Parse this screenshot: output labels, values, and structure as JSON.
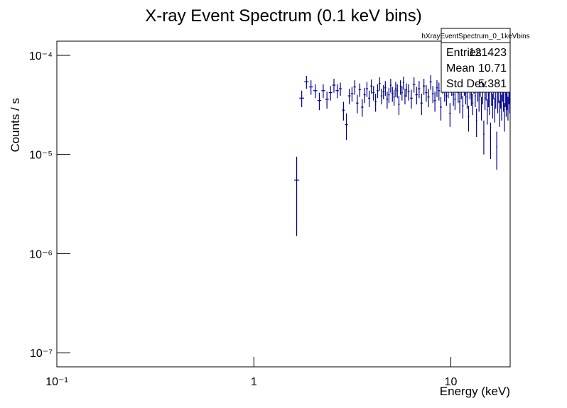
{
  "chart_data": {
    "type": "errorbar",
    "title": "X-ray Event Spectrum (0.1 keV bins)",
    "x_label": "Energy (keV)",
    "y_label": "Counts / s",
    "xlog": true,
    "ylog": true,
    "xlim": [
      0.1,
      20
    ],
    "ylim": [
      7.2e-08,
      0.000139
    ],
    "xticks": [
      {
        "value": 0.1,
        "label": "10⁻¹"
      },
      1,
      10
    ],
    "yticks": [
      {
        "value": 1e-07,
        "label": "10⁻⁷"
      },
      {
        "value": 1e-06,
        "label": "10⁻⁶"
      },
      {
        "value": 1e-05,
        "label": "10⁻⁵"
      },
      {
        "value": 0.0001,
        "label": "10⁻⁴"
      }
    ],
    "stats": {
      "title": "hXrayEventSpectrum_0_1keVbins",
      "rows": [
        [
          "Entries",
          "121423"
        ],
        [
          "Mean",
          "10.71"
        ],
        [
          "Std Dev",
          "5.381"
        ]
      ]
    },
    "series": [
      {
        "color": "#00008b",
        "x": [
          1.65,
          1.75,
          1.85,
          1.95,
          2.05,
          2.15,
          2.25,
          2.35,
          2.45,
          2.55,
          2.65,
          2.75,
          2.85,
          2.95,
          3.05,
          3.15,
          3.25,
          3.35,
          3.45,
          3.55,
          3.65,
          3.75,
          3.85,
          3.95,
          4.05,
          4.15,
          4.25,
          4.35,
          4.45,
          4.55,
          4.65,
          4.75,
          4.85,
          4.95,
          5.05,
          5.15,
          5.25,
          5.35,
          5.45,
          5.55,
          5.65,
          5.75,
          5.85,
          5.95,
          6.1,
          6.3,
          6.5,
          6.7,
          6.9,
          7.1,
          7.3,
          7.5,
          7.7,
          7.9,
          8.1,
          8.3,
          8.5,
          8.7,
          8.9,
          9.1,
          9.3,
          9.5,
          9.7,
          9.9,
          10.1,
          10.3,
          10.5,
          10.7,
          10.9,
          11.1,
          11.3,
          11.5,
          11.7,
          11.9,
          12.1,
          12.3,
          12.5,
          12.7,
          12.9,
          13.1,
          13.3,
          13.5,
          13.7,
          13.9,
          14.1,
          14.3,
          14.5,
          14.7,
          14.9,
          15.1,
          15.3,
          15.5,
          15.7,
          15.9,
          16.1,
          16.3,
          16.5,
          16.7,
          16.9,
          17.1,
          17.3,
          17.5,
          17.7,
          17.9,
          18.1,
          18.3,
          18.5,
          18.7,
          18.9,
          19.1,
          19.3,
          19.5,
          19.7,
          19.9
        ],
        "values": [
          5.5e-06,
          3.7e-05,
          5.4e-05,
          4.8e-05,
          4.4e-05,
          3.5e-05,
          4.4e-05,
          3.6e-05,
          4.2e-05,
          5e-05,
          4.4e-05,
          4.6e-05,
          2.8e-05,
          2e-05,
          3.9e-05,
          4.1e-05,
          4.8e-05,
          3.3e-05,
          4.5e-05,
          3e-05,
          4e-05,
          4.6e-05,
          3.7e-05,
          4.9e-05,
          4.2e-05,
          3.4e-05,
          4.4e-05,
          5.2e-05,
          3.9e-05,
          4.3e-05,
          4.7e-05,
          3.6e-05,
          4e-05,
          5e-05,
          4.1e-05,
          3.8e-05,
          4.6e-05,
          4.4e-05,
          3.2e-05,
          4.8e-05,
          4.2e-05,
          5.3e-05,
          3.9e-05,
          4.5e-05,
          4.3e-05,
          3.7e-05,
          5.1e-05,
          4e-05,
          4.6e-05,
          3.3e-05,
          4.9e-05,
          4.2e-05,
          3.8e-05,
          5.4e-05,
          4.1e-05,
          3.5e-05,
          4.7e-05,
          4.4e-05,
          3e-05,
          5e-05,
          4.3e-05,
          3.9e-05,
          4.6e-05,
          2.6e-05,
          4.8e-05,
          4e-05,
          3.6e-05,
          5.2e-05,
          4.2e-05,
          3.4e-05,
          4.5e-05,
          3.1e-05,
          4.9e-05,
          4.1e-05,
          3.8e-05,
          2.4e-05,
          4.6e-05,
          4e-05,
          3.3e-05,
          5.1e-05,
          3.9e-05,
          2.2e-05,
          4.4e-05,
          3.6e-05,
          4.8e-05,
          3e-05,
          4.2e-05,
          1.6e-05,
          3.7e-05,
          4.5e-05,
          2.8e-05,
          4e-05,
          3.4e-05,
          1.5e-05,
          4.1e-05,
          3.2e-05,
          4.6e-05,
          2.9e-05,
          3.8e-05,
          1.2e-05,
          3.5e-05,
          4.3e-05,
          2.7e-05,
          3.9e-05,
          3.1e-05,
          4.4e-05,
          3.6e-05,
          2.5e-05,
          4e-05,
          3.3e-05,
          3.8e-05,
          3e-05,
          4.2e-05,
          3.5e-05
        ],
        "errors": [
          4e-06,
          7e-06,
          8e-06,
          8e-06,
          7e-06,
          7e-06,
          7e-06,
          7e-06,
          7e-06,
          8e-06,
          7e-06,
          7e-06,
          6e-06,
          6e-06,
          7e-06,
          7e-06,
          8e-06,
          7e-06,
          7e-06,
          6e-06,
          7e-06,
          8e-06,
          7e-06,
          8e-06,
          7e-06,
          7e-06,
          7e-06,
          8e-06,
          7e-06,
          7e-06,
          8e-06,
          7e-06,
          7e-06,
          8e-06,
          7e-06,
          7e-06,
          8e-06,
          7e-06,
          7e-06,
          8e-06,
          7e-06,
          8e-06,
          7e-06,
          7e-06,
          8e-06,
          8e-06,
          9e-06,
          8e-06,
          9e-06,
          8e-06,
          9e-06,
          8e-06,
          8e-06,
          9e-06,
          8e-06,
          8e-06,
          9e-06,
          9e-06,
          8e-06,
          9e-06,
          9e-06,
          8e-06,
          9e-06,
          7e-06,
          9e-06,
          9e-06,
          8e-06,
          1e-05,
          9e-06,
          8e-06,
          9e-06,
          8e-06,
          1e-05,
          9e-06,
          9e-06,
          7e-06,
          1e-05,
          9e-06,
          8e-06,
          1e-05,
          9e-06,
          7e-06,
          1e-05,
          9e-06,
          1e-05,
          8e-06,
          1e-05,
          6e-06,
          9e-06,
          1e-05,
          8e-06,
          1e-05,
          9e-06,
          6e-06,
          1e-05,
          9e-06,
          1e-05,
          8e-06,
          9e-06,
          5e-06,
          9e-06,
          1e-05,
          8e-06,
          1e-05,
          9e-06,
          1e-05,
          9e-06,
          8e-06,
          1e-05,
          9e-06,
          1e-05,
          8e-06,
          1e-05,
          9e-06
        ]
      }
    ]
  }
}
